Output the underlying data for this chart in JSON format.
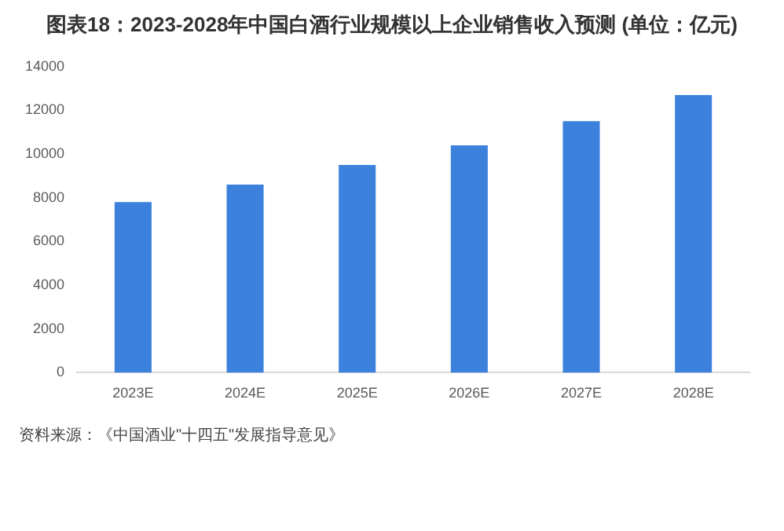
{
  "chart_data": {
    "type": "bar",
    "title": "图表18：2023-2028年中国白酒行业规模以上企业销售收入预测 (单位：亿元)",
    "categories": [
      "2023E",
      "2024E",
      "2025E",
      "2026E",
      "2027E",
      "2028E"
    ],
    "values": [
      7800,
      8600,
      9500,
      10400,
      11500,
      12700
    ],
    "color": "#3c82dc",
    "ylim": [
      0,
      14000
    ],
    "yticks": [
      0,
      2000,
      4000,
      6000,
      8000,
      10000,
      12000,
      14000
    ],
    "grid": false,
    "legend": false,
    "annotations": [
      "资料来源：《中国酒业\"十四五\"发展指导意见》"
    ]
  }
}
